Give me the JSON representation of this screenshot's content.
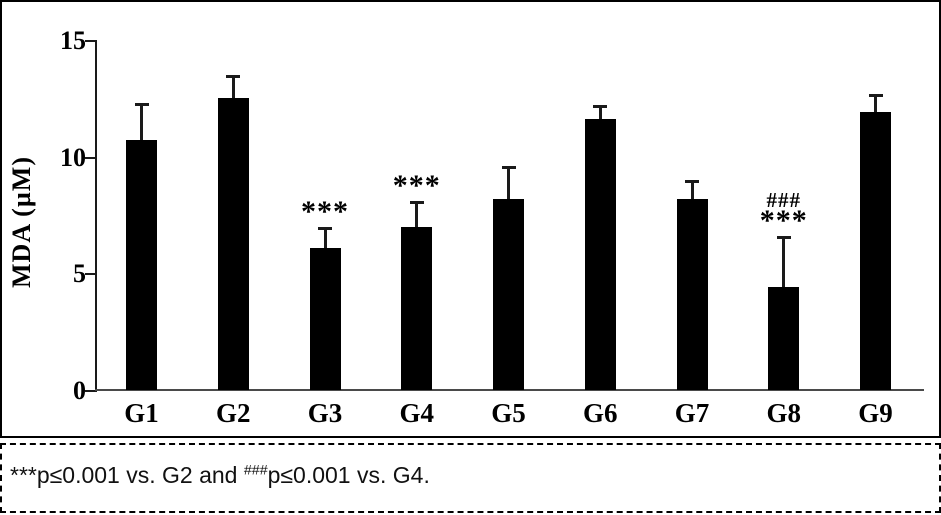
{
  "chart_data": {
    "type": "bar",
    "title": "",
    "xlabel": "",
    "ylabel": "MDA (µM)",
    "ylim": [
      0,
      15
    ],
    "yticks": [
      0,
      5,
      10,
      15
    ],
    "grid": false,
    "legend": null,
    "bar_color": "#000000",
    "categories": [
      "G1",
      "G2",
      "G3",
      "G4",
      "G5",
      "G6",
      "G7",
      "G8",
      "G9"
    ],
    "values": [
      10.7,
      12.5,
      6.1,
      7.0,
      8.2,
      11.6,
      8.2,
      4.4,
      11.9
    ],
    "errors": [
      1.6,
      1.0,
      0.9,
      1.1,
      1.4,
      0.6,
      0.8,
      2.2,
      0.8
    ],
    "annotations": [
      {
        "category": "G3",
        "marks": [
          "***"
        ]
      },
      {
        "category": "G4",
        "marks": [
          "***"
        ]
      },
      {
        "category": "G8",
        "marks": [
          "###",
          "***"
        ]
      }
    ]
  },
  "footnote": {
    "star_marker": "***",
    "text_1": "p≤0.001 vs. G2 and ",
    "hash_marker": "###",
    "text_2": "p≤0.001 vs. G4."
  }
}
